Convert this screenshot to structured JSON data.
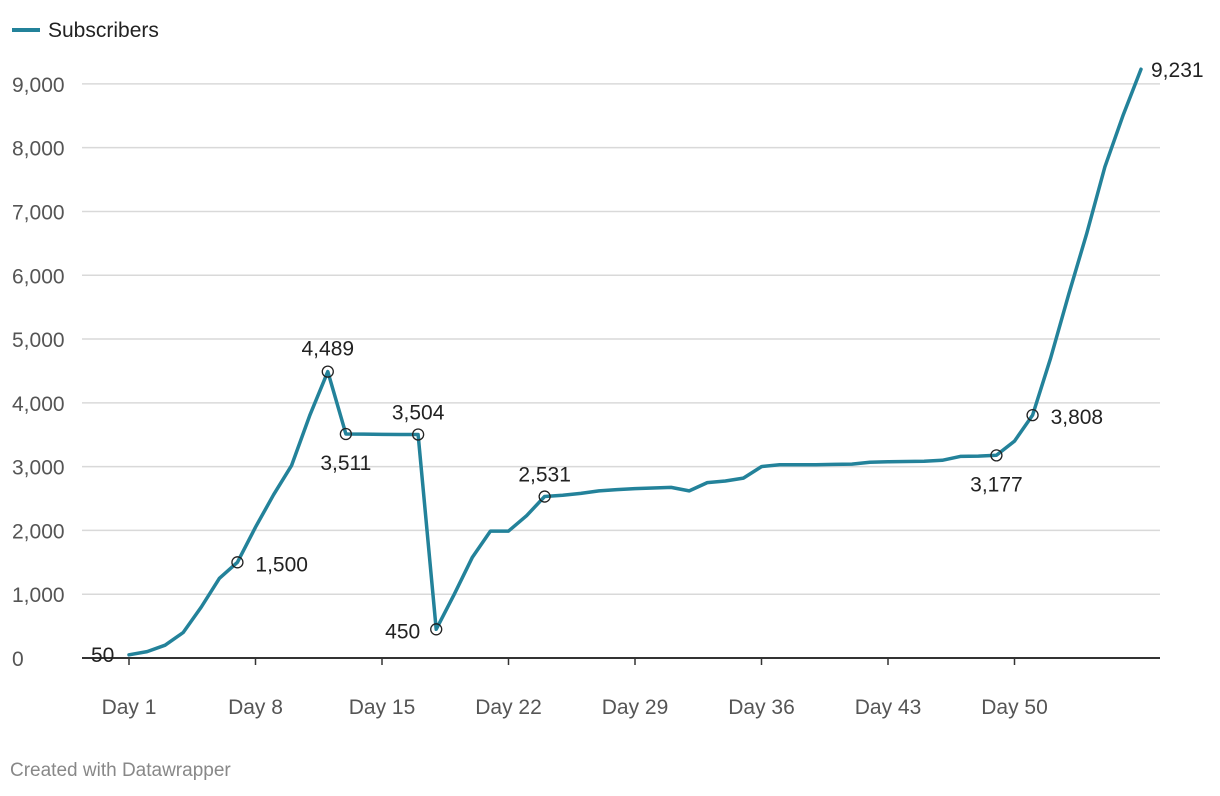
{
  "footer": {
    "credit": "Created with Datawrapper"
  },
  "colors": {
    "series": "#23829a",
    "grid": "#d9d9d9",
    "axis": "#333333"
  },
  "chart_data": {
    "type": "line",
    "grid": true,
    "legend_position": "top-left",
    "xlim": [
      1,
      57
    ],
    "ylim": [
      0,
      9500
    ],
    "y_ticks": [
      0,
      1000,
      2000,
      3000,
      4000,
      5000,
      6000,
      7000,
      8000,
      9000
    ],
    "y_tick_labels": [
      "0",
      "1,000",
      "2,000",
      "3,000",
      "4,000",
      "5,000",
      "6,000",
      "7,000",
      "8,000",
      "9,000"
    ],
    "x_ticks": [
      1,
      8,
      15,
      22,
      29,
      36,
      43,
      50
    ],
    "x_tick_labels": [
      "Day 1",
      "Day 8",
      "Day 15",
      "Day 22",
      "Day 29",
      "Day 36",
      "Day 43",
      "Day 50"
    ],
    "series": [
      {
        "name": "Subscribers",
        "x": [
          1,
          2,
          3,
          4,
          5,
          6,
          7,
          8,
          9,
          10,
          11,
          12,
          13,
          14,
          15,
          16,
          17,
          18,
          19,
          20,
          21,
          22,
          23,
          24,
          25,
          26,
          27,
          28,
          29,
          30,
          31,
          32,
          33,
          34,
          35,
          36,
          37,
          38,
          39,
          40,
          41,
          42,
          43,
          44,
          45,
          46,
          47,
          48,
          49,
          50,
          51,
          52,
          53,
          54,
          55,
          56,
          57
        ],
        "values": [
          50,
          100,
          200,
          400,
          800,
          1250,
          1500,
          2050,
          2560,
          3020,
          3800,
          4489,
          3511,
          3510,
          3505,
          3504,
          3504,
          450,
          1000,
          1580,
          1990,
          1990,
          2230,
          2531,
          2550,
          2580,
          2620,
          2640,
          2655,
          2665,
          2675,
          2620,
          2750,
          2775,
          2820,
          3000,
          3030,
          3030,
          3030,
          3035,
          3040,
          3070,
          3075,
          3080,
          3085,
          3100,
          3160,
          3165,
          3177,
          3400,
          3808,
          4700,
          5700,
          6660,
          7700,
          8500,
          9231
        ]
      }
    ],
    "annotations": [
      {
        "x": 1,
        "y": 50,
        "label": "50",
        "marker": false
      },
      {
        "x": 7,
        "y": 1500,
        "label": "1,500",
        "marker": true
      },
      {
        "x": 12,
        "y": 4489,
        "label": "4,489",
        "marker": true
      },
      {
        "x": 13,
        "y": 3511,
        "label": "3,511",
        "marker": true
      },
      {
        "x": 17,
        "y": 3504,
        "label": "3,504",
        "marker": true
      },
      {
        "x": 18,
        "y": 450,
        "label": "450",
        "marker": true
      },
      {
        "x": 24,
        "y": 2531,
        "label": "2,531",
        "marker": true
      },
      {
        "x": 49,
        "y": 3177,
        "label": "3,177",
        "marker": true
      },
      {
        "x": 51,
        "y": 3808,
        "label": "3,808",
        "marker": true
      },
      {
        "x": 57,
        "y": 9231,
        "label": "9,231",
        "marker": false
      }
    ]
  }
}
